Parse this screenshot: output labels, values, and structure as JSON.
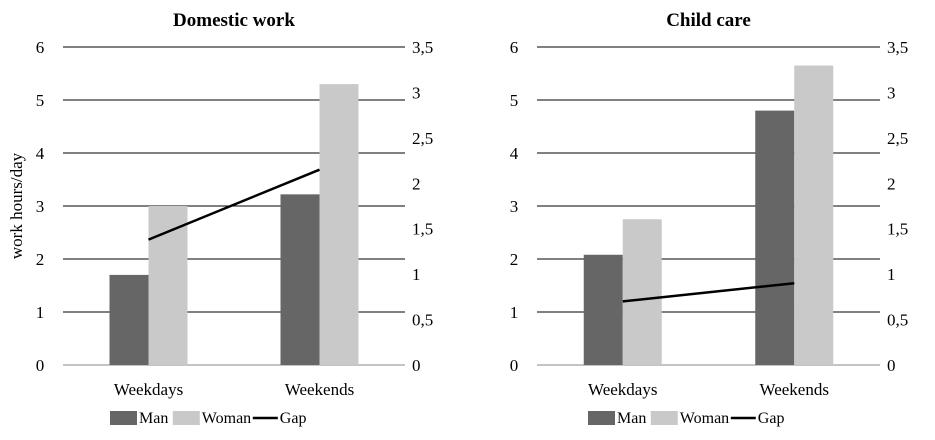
{
  "chart_data": [
    {
      "type": "bar",
      "title": "Domestic work",
      "ylabel": "work hours/day",
      "categories": [
        "Weekdays",
        "Weekends"
      ],
      "ylim": [
        0,
        6
      ],
      "y_ticks": [
        "0",
        "1",
        "2",
        "3",
        "4",
        "5",
        "6"
      ],
      "y2lim": [
        0,
        3.5
      ],
      "y2_ticks": [
        "0",
        "0,5",
        "1",
        "1,5",
        "2",
        "2,5",
        "3",
        "3,5"
      ],
      "grid": true,
      "series": [
        {
          "name": "Man",
          "type": "bar",
          "color": "#666666",
          "values": [
            1.7,
            3.22
          ]
        },
        {
          "name": "Woman",
          "type": "bar",
          "color": "#c9c9c9",
          "values": [
            3.0,
            5.3
          ]
        },
        {
          "name": "Gap",
          "type": "line",
          "axis": "secondary",
          "color": "#000000",
          "values": [
            1.38,
            2.15
          ]
        }
      ],
      "legend": "bottom"
    },
    {
      "type": "bar",
      "title": "Child care",
      "ylabel": "",
      "categories": [
        "Weekdays",
        "Weekends"
      ],
      "ylim": [
        0,
        6
      ],
      "y_ticks": [
        "0",
        "1",
        "2",
        "3",
        "4",
        "5",
        "6"
      ],
      "y2lim": [
        0,
        3.5
      ],
      "y2_ticks": [
        "0",
        "0,5",
        "1",
        "1,5",
        "2",
        "2,5",
        "3",
        "3,5"
      ],
      "grid": true,
      "series": [
        {
          "name": "Man",
          "type": "bar",
          "color": "#666666",
          "values": [
            2.08,
            4.8
          ]
        },
        {
          "name": "Woman",
          "type": "bar",
          "color": "#c9c9c9",
          "values": [
            2.75,
            5.65
          ]
        },
        {
          "name": "Gap",
          "type": "line",
          "axis": "secondary",
          "color": "#000000",
          "values": [
            0.7,
            0.9
          ]
        }
      ],
      "legend": "bottom"
    }
  ]
}
